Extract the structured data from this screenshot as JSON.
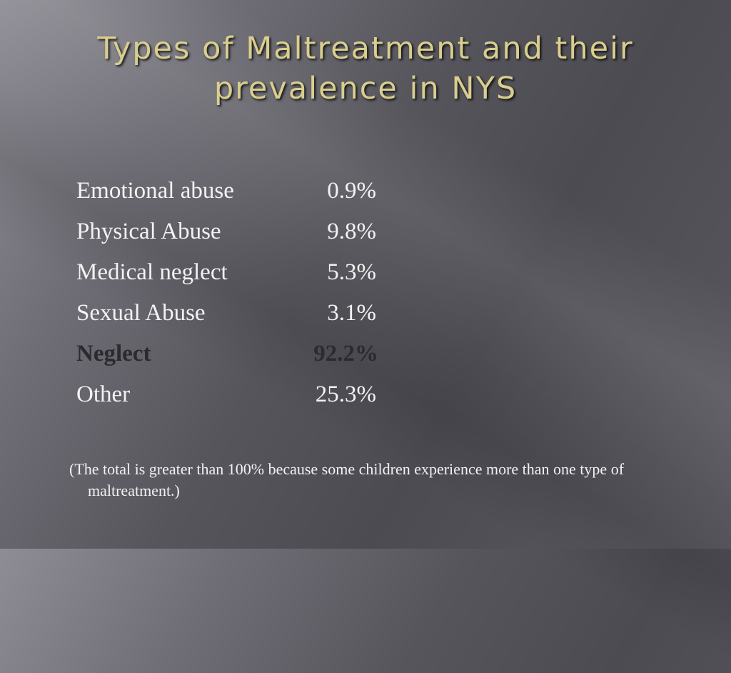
{
  "slide": {
    "title": "Types of Maltreatment and their prevalence in NYS",
    "rows": [
      {
        "label": "Emotional abuse",
        "value": "0.9%",
        "bold": false
      },
      {
        "label": "Physical Abuse",
        "value": "9.8%",
        "bold": false
      },
      {
        "label": "Medical neglect",
        "value": "5.3%",
        "bold": false
      },
      {
        "label": "Sexual Abuse",
        "value": "3.1%",
        "bold": false
      },
      {
        "label": "Neglect",
        "value": "92.2%",
        "bold": true
      },
      {
        "label": "Other",
        "value": "25.3%",
        "bold": false
      }
    ],
    "note": "(The total is greater than 100% because some children experience more than one type of maltreatment.)"
  },
  "colors": {
    "title": "#d9ce8e",
    "body_text": "#f2f2f2",
    "bold_text": "#2b2b2f",
    "background": "#56555c"
  }
}
